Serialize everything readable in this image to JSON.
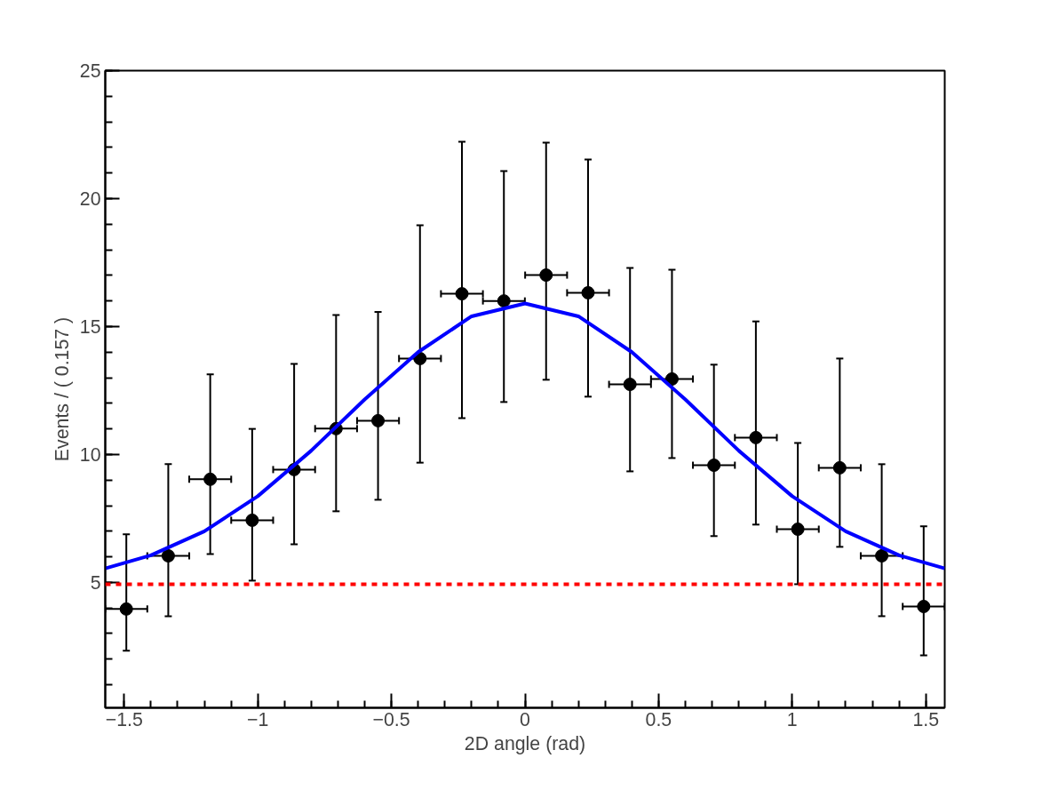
{
  "chart_data": {
    "type": "scatter",
    "xlabel": "2D angle (rad)",
    "ylabel": "Events / ( 0.157 )",
    "xlim": [
      -1.5708,
      1.5708
    ],
    "ylim": [
      0.1,
      25
    ],
    "xticks": [
      -1.5,
      -1,
      -0.5,
      0,
      0.5,
      1,
      1.5
    ],
    "yticks": [
      5,
      10,
      15,
      20,
      25
    ],
    "grid": false,
    "series": [
      {
        "marker": "circle",
        "color": "#000000",
        "x": [
          -1.492,
          -1.335,
          -1.178,
          -1.021,
          -0.864,
          -0.707,
          -0.55,
          -0.393,
          -0.236,
          -0.079,
          0.079,
          0.236,
          0.393,
          0.55,
          0.707,
          0.864,
          1.021,
          1.178,
          1.335,
          1.492
        ],
        "values": [
          3.96,
          6.04,
          9.03,
          7.43,
          9.41,
          11.01,
          11.32,
          13.75,
          16.28,
          16.0,
          17.01,
          16.32,
          12.74,
          12.95,
          9.58,
          10.66,
          7.08,
          9.48,
          6.04,
          4.06
        ],
        "errors": [
          [
            2.33,
            6.88
          ],
          [
            3.68,
            9.62
          ],
          [
            6.11,
            13.13
          ],
          [
            5.07,
            11.0
          ],
          [
            6.49,
            13.54
          ],
          [
            7.78,
            15.45
          ],
          [
            8.23,
            15.57
          ],
          [
            9.68,
            18.96
          ],
          [
            11.42,
            22.22
          ],
          [
            12.05,
            21.08
          ],
          [
            12.92,
            22.19
          ],
          [
            12.26,
            21.53
          ],
          [
            9.34,
            17.29
          ],
          [
            9.86,
            17.22
          ],
          [
            6.81,
            13.51
          ],
          [
            7.26,
            15.2
          ],
          [
            4.93,
            10.45
          ],
          [
            6.39,
            13.75
          ],
          [
            3.68,
            9.62
          ],
          [
            2.15,
            7.19
          ]
        ],
        "xerrors": [
          0.0785,
          0.0785,
          0.0785,
          0.0785,
          0.0785,
          0.0785,
          0.0785,
          0.0785,
          0.0785,
          0.0785,
          0.0785,
          0.0785,
          0.0785,
          0.0785,
          0.0785,
          0.0785,
          0.0785,
          0.0785,
          0.0785,
          0.0785
        ]
      },
      {
        "type": "line",
        "color": "#0000ff",
        "line_style": "solid",
        "x": [
          -1.5708,
          -1.4,
          -1.2,
          -1.0,
          -0.8,
          -0.6,
          -0.4,
          -0.2,
          0,
          0.2,
          0.4,
          0.6,
          0.8,
          1.0,
          1.2,
          1.4,
          1.5708
        ],
        "values": [
          5.55,
          6.06,
          7.0,
          8.37,
          10.15,
          12.15,
          14.0,
          15.4,
          15.9,
          15.4,
          14.0,
          12.15,
          10.15,
          8.37,
          7.0,
          6.06,
          5.55
        ]
      }
    ],
    "ref_lines": [
      {
        "axis": "y",
        "value": 4.93,
        "label": null,
        "color": "#ff0000",
        "line_style": "dashed"
      }
    ]
  }
}
